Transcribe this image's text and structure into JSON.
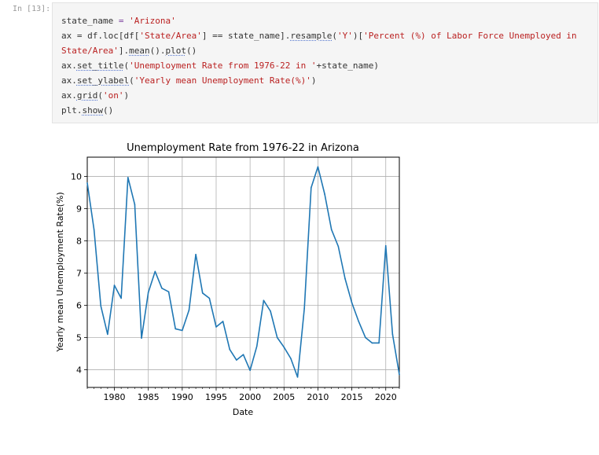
{
  "cell": {
    "prompt": "In [13]:"
  },
  "code": {
    "l1_var": "state_name",
    "l1_eq": " = ",
    "l1_str": "'Arizona'",
    "l2_a": "ax = df.loc[df[",
    "l2_str1": "'State/Area'",
    "l2_b": "] == state_name].",
    "l2_fn": "resample",
    "l2_c": "(",
    "l2_str2": "'Y'",
    "l2_d": ")[",
    "l2_str3": "'Percent (%) of Labor Force Unemployed in",
    "l3_str": "State/Area'",
    "l3_a": "].",
    "l3_fn1": "mean",
    "l3_b": "().",
    "l3_fn2": "plot",
    "l3_c": "()",
    "l4_a": "ax.",
    "l4_fn": "set_title",
    "l4_b": "(",
    "l4_str": "'Unemployment Rate from 1976-22 in '",
    "l4_c": "+state_name)",
    "l5_a": "ax.",
    "l5_fn": "set_ylabel",
    "l5_b": "(",
    "l5_str": "'Yearly mean Unemployment Rate(%)'",
    "l5_c": ")",
    "l6_a": "ax.",
    "l6_fn": "grid",
    "l6_b": "(",
    "l6_str": "'on'",
    "l6_c": ")",
    "l7_a": "plt.",
    "l7_fn": "show",
    "l7_b": "()"
  },
  "chart_data": {
    "type": "line",
    "title": "Unemployment Rate from 1976-22 in Arizona",
    "xlabel": "Date",
    "ylabel": "Yearly mean Unemployment Rate(%)",
    "grid": true,
    "line_color": "#1f77b4",
    "xlim": [
      1976,
      2022
    ],
    "ylim": [
      3.45,
      10.6
    ],
    "xticks": [
      1980,
      1985,
      1990,
      1995,
      2000,
      2005,
      2010,
      2015,
      2020
    ],
    "yticks": [
      4,
      5,
      6,
      7,
      8,
      9,
      10
    ],
    "x": [
      1976,
      1977,
      1978,
      1979,
      1980,
      1981,
      1982,
      1983,
      1984,
      1985,
      1986,
      1987,
      1988,
      1989,
      1990,
      1991,
      1992,
      1993,
      1994,
      1995,
      1996,
      1997,
      1998,
      1999,
      2000,
      2001,
      2002,
      2003,
      2004,
      2005,
      2006,
      2007,
      2008,
      2009,
      2010,
      2011,
      2012,
      2013,
      2014,
      2015,
      2016,
      2017,
      2018,
      2019,
      2020,
      2021,
      2022
    ],
    "y": [
      9.8,
      8.35,
      5.98,
      5.1,
      6.62,
      6.22,
      9.97,
      9.13,
      4.98,
      6.4,
      7.05,
      6.53,
      6.42,
      5.27,
      5.22,
      5.85,
      7.58,
      6.38,
      6.22,
      5.33,
      5.5,
      4.63,
      4.3,
      4.47,
      3.98,
      4.73,
      6.15,
      5.82,
      5.0,
      4.7,
      4.35,
      3.77,
      5.9,
      9.65,
      10.3,
      9.45,
      8.35,
      7.83,
      6.83,
      6.08,
      5.5,
      5.0,
      4.83,
      4.83,
      7.85,
      5.1,
      3.85
    ]
  }
}
